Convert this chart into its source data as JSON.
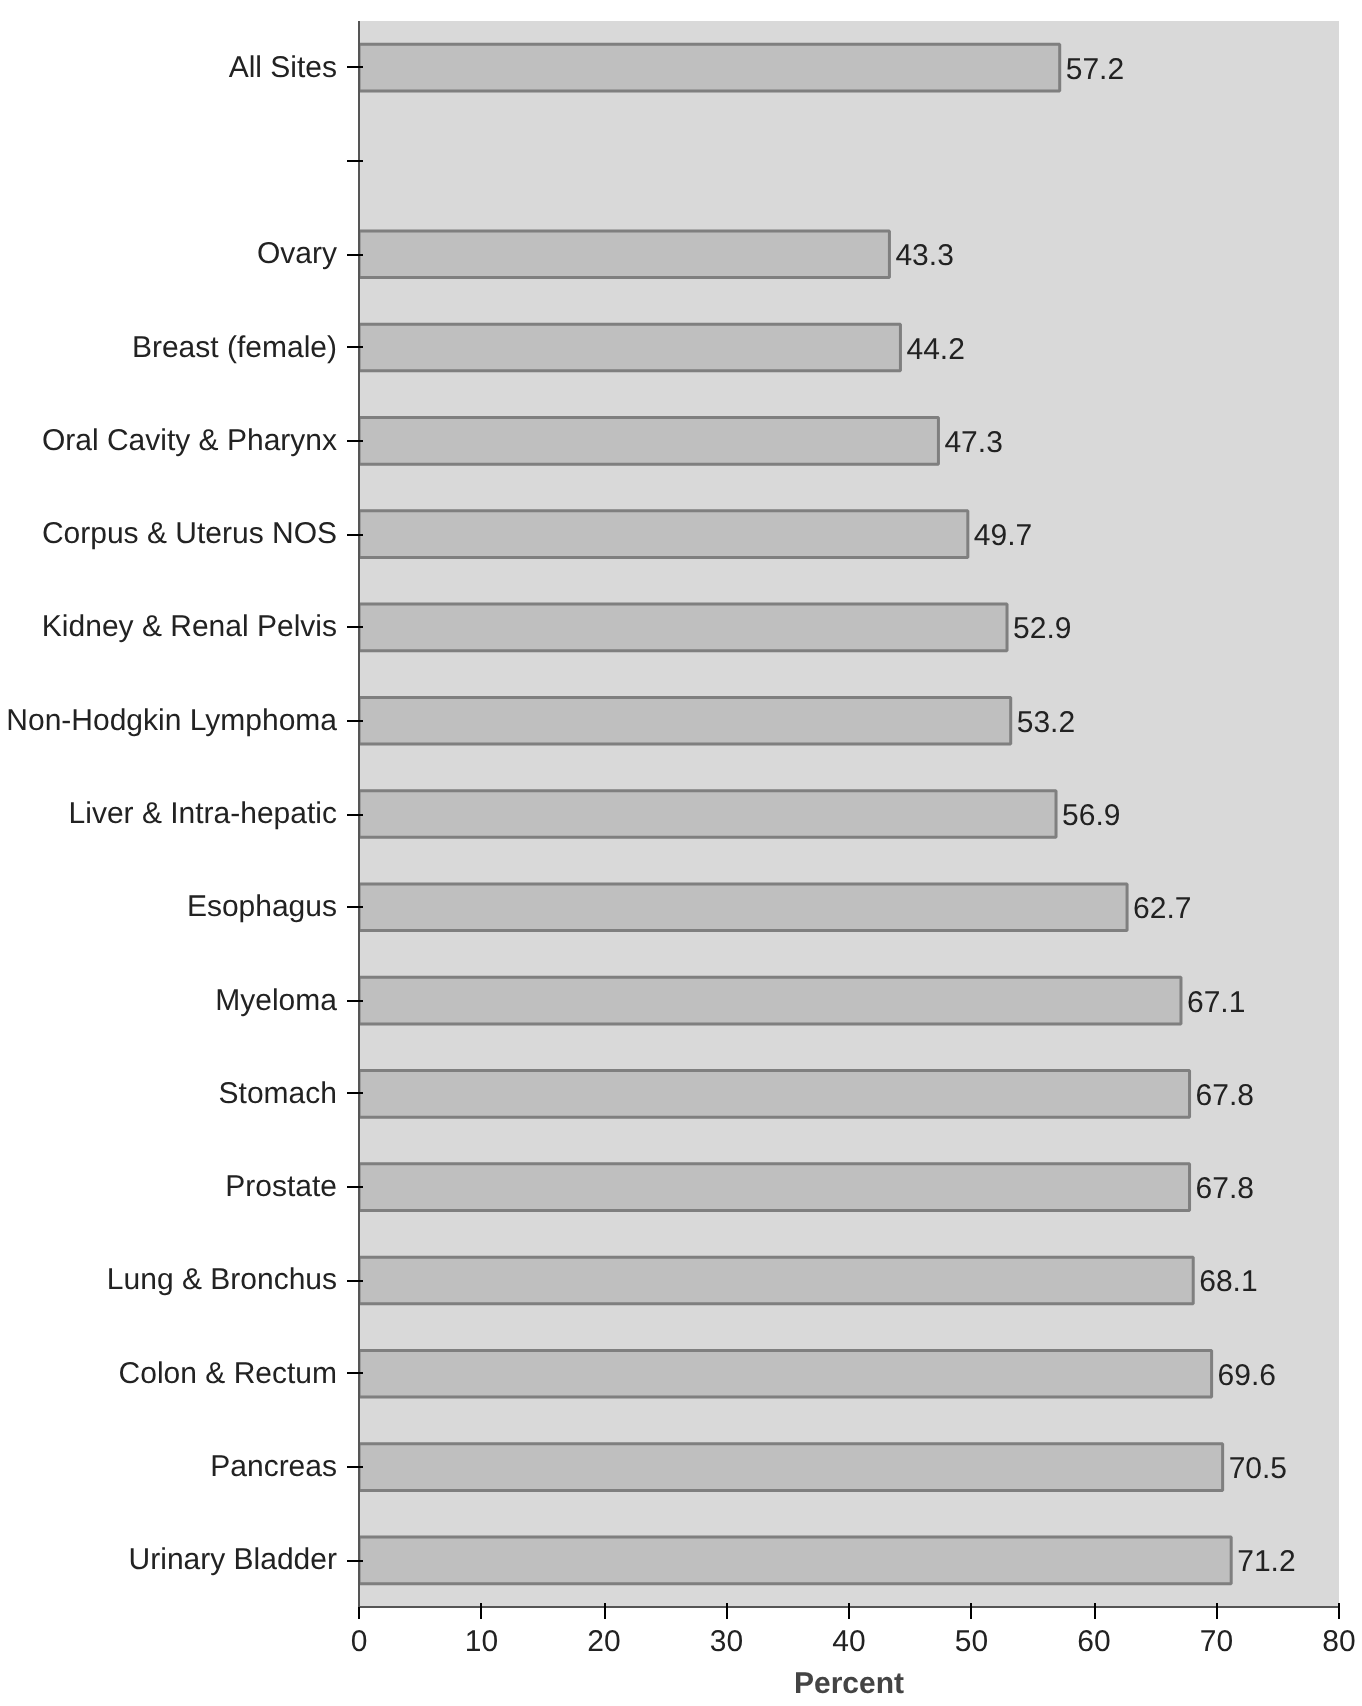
{
  "chart_data": {
    "type": "bar",
    "orientation": "horizontal",
    "xlabel": "Percent",
    "categories": [
      "All Sites",
      null,
      "Ovary",
      "Breast (female)",
      "Oral Cavity & Pharynx",
      "Corpus & Uterus NOS",
      "Kidney & Renal Pelvis",
      "Non-Hodgkin Lymphoma",
      "Liver & Intra-hepatic",
      "Esophagus",
      "Myeloma",
      "Stomach",
      "Prostate",
      "Lung & Bronchus",
      "Colon & Rectum",
      "Pancreas",
      "Urinary Bladder"
    ],
    "values": [
      57.2,
      null,
      43.3,
      44.2,
      47.3,
      49.7,
      52.9,
      53.2,
      56.9,
      62.7,
      67.1,
      67.8,
      67.8,
      68.1,
      69.6,
      70.5,
      71.2
    ],
    "color": "#bfbfbf",
    "xlim": [
      0,
      80
    ],
    "xticks": [
      0,
      10,
      20,
      30,
      40,
      50,
      60,
      70,
      80
    ],
    "data_labels": true,
    "grid": false
  }
}
